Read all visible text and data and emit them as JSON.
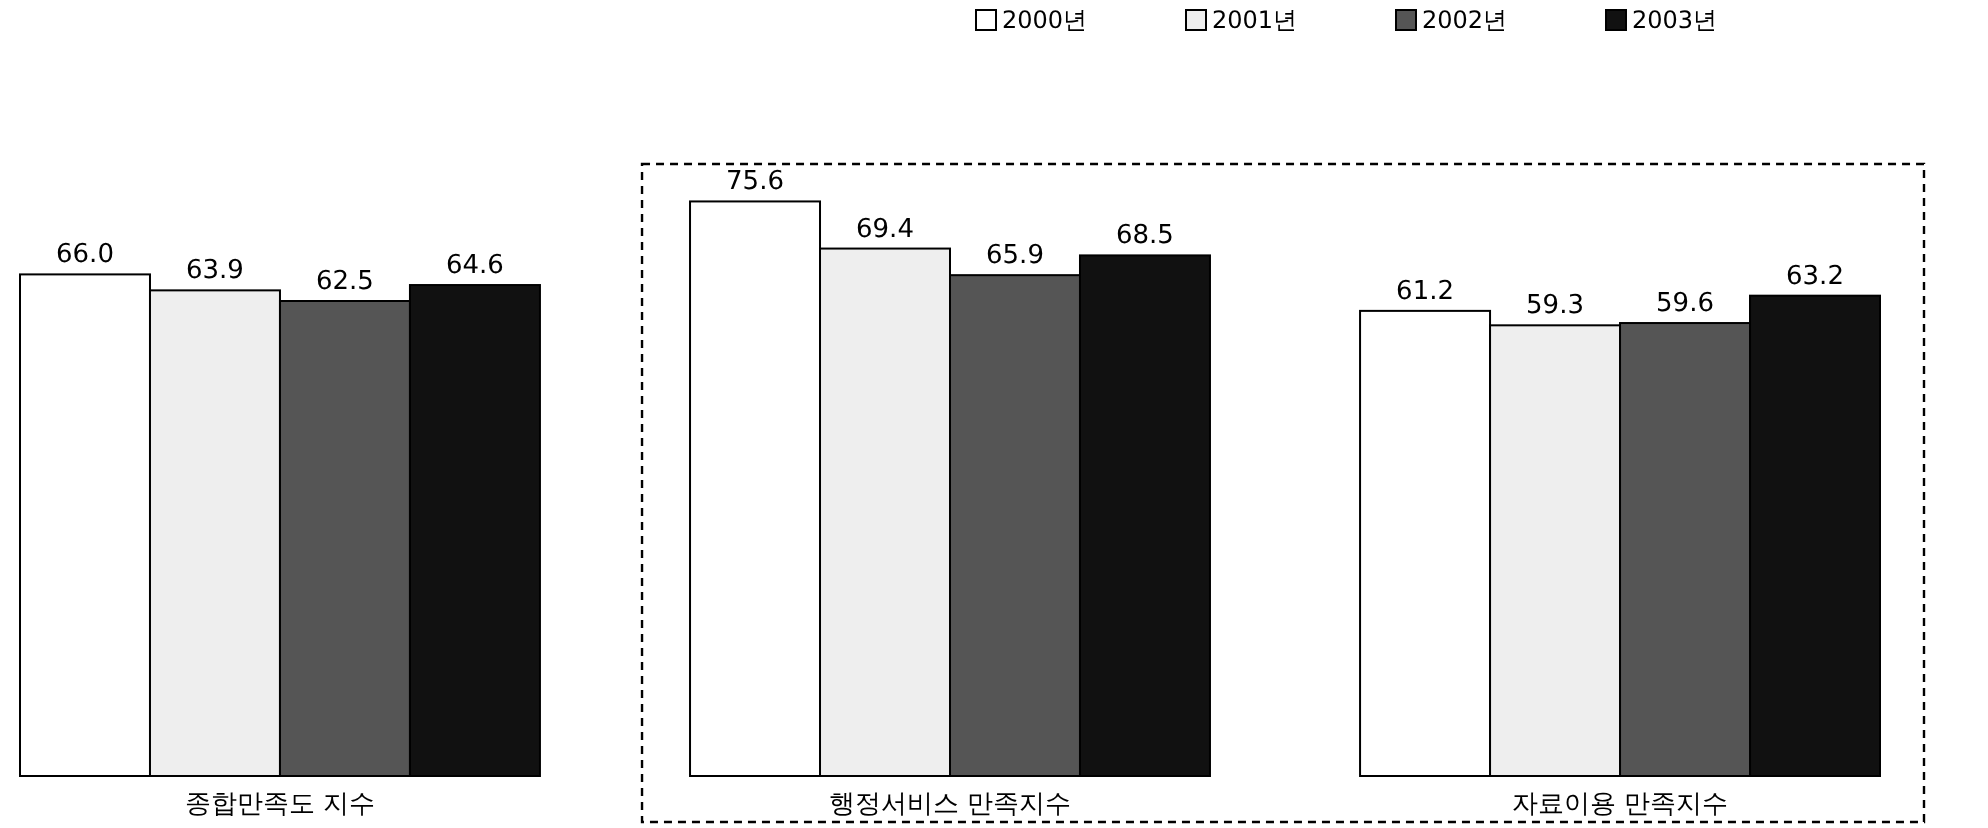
{
  "chart_data": {
    "type": "bar",
    "categories": [
      "종합만족도 지수",
      "행정서비스 만족지수",
      "자료이용 만족지수"
    ],
    "series": [
      {
        "name": "2000년",
        "color": "#ffffff",
        "values": [
          66.0,
          75.6,
          61.2
        ],
        "value_labels": [
          "66.0",
          "75.6",
          "61.2"
        ]
      },
      {
        "name": "2001년",
        "color": "#eeeeee",
        "values": [
          63.9,
          69.4,
          59.3
        ],
        "value_labels": [
          "63.9",
          "69.4",
          "59.3"
        ]
      },
      {
        "name": "2002년",
        "color": "#555555",
        "values": [
          62.5,
          65.9,
          59.6
        ],
        "value_labels": [
          "62.5",
          "65.9",
          "59.6"
        ]
      },
      {
        "name": "2003년",
        "color": "#111111",
        "values": [
          64.6,
          68.5,
          63.2
        ],
        "value_labels": [
          "64.6",
          "68.5",
          "63.2"
        ]
      }
    ],
    "legend": "top right",
    "grid": false
  }
}
